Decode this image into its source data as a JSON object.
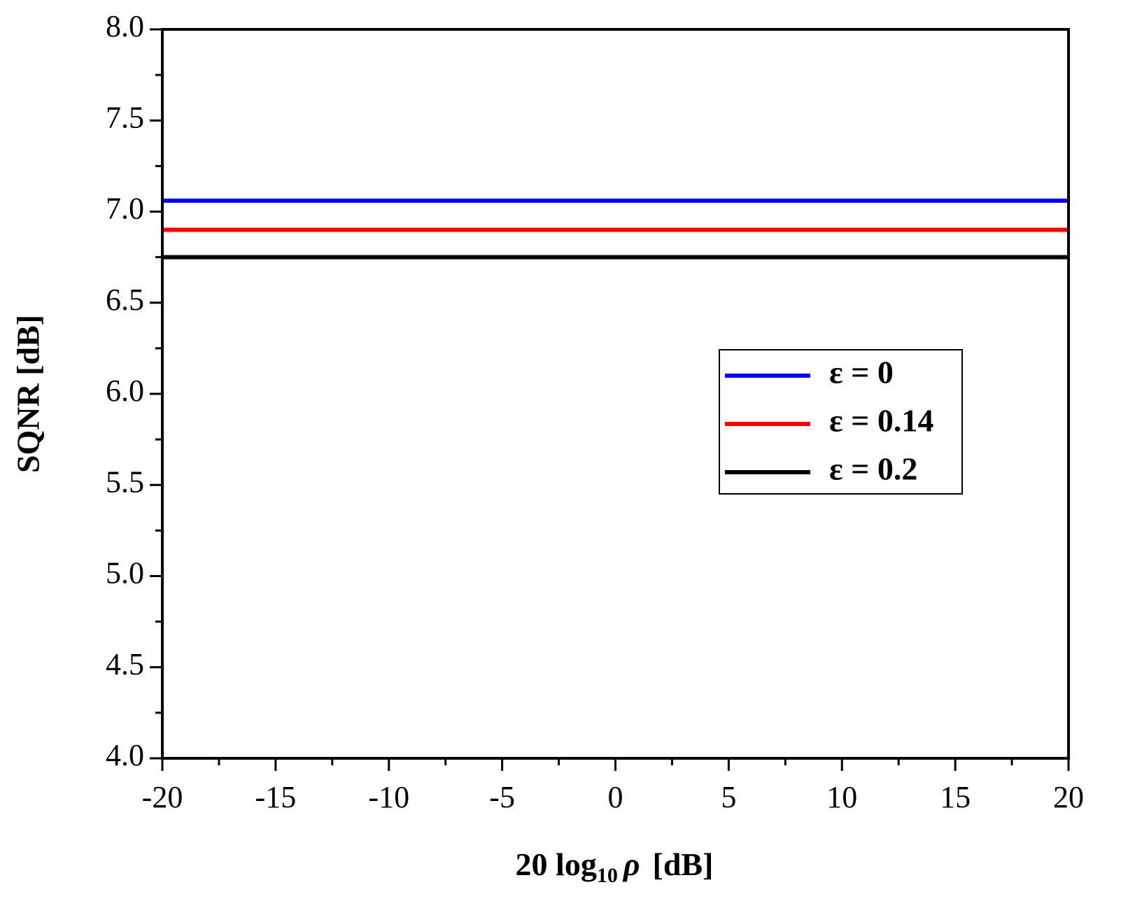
{
  "chart_data": {
    "type": "line",
    "x_label": {
      "text": "20 log",
      "subscript": "10",
      "symbol": "ρ",
      "unit": "[dB]"
    },
    "y_label": "SQNR [dB]",
    "x": [
      -20,
      20
    ],
    "series": [
      {
        "name": "ε = 0",
        "color": "#0000ff",
        "values": [
          7.06,
          7.06
        ]
      },
      {
        "name": "ε = 0.14",
        "color": "#ff0000",
        "values": [
          6.9,
          6.9
        ]
      },
      {
        "name": "ε = 0.2",
        "color": "#000000",
        "values": [
          6.75,
          6.75
        ]
      }
    ],
    "xlim": [
      -20,
      20
    ],
    "xticks": [
      -20,
      -15,
      -10,
      -5,
      0,
      5,
      10,
      15,
      20
    ],
    "ylim": [
      4,
      8
    ],
    "yticks": [
      {
        "value": 4,
        "label": "4.0"
      },
      4.5,
      {
        "value": 5,
        "label": "5.0"
      },
      5.5,
      {
        "value": 6,
        "label": "6.0"
      },
      6.5,
      {
        "value": 7,
        "label": "7.0"
      },
      7.5,
      {
        "value": 8,
        "label": "8.0"
      }
    ],
    "grid": false,
    "legend": "right"
  }
}
